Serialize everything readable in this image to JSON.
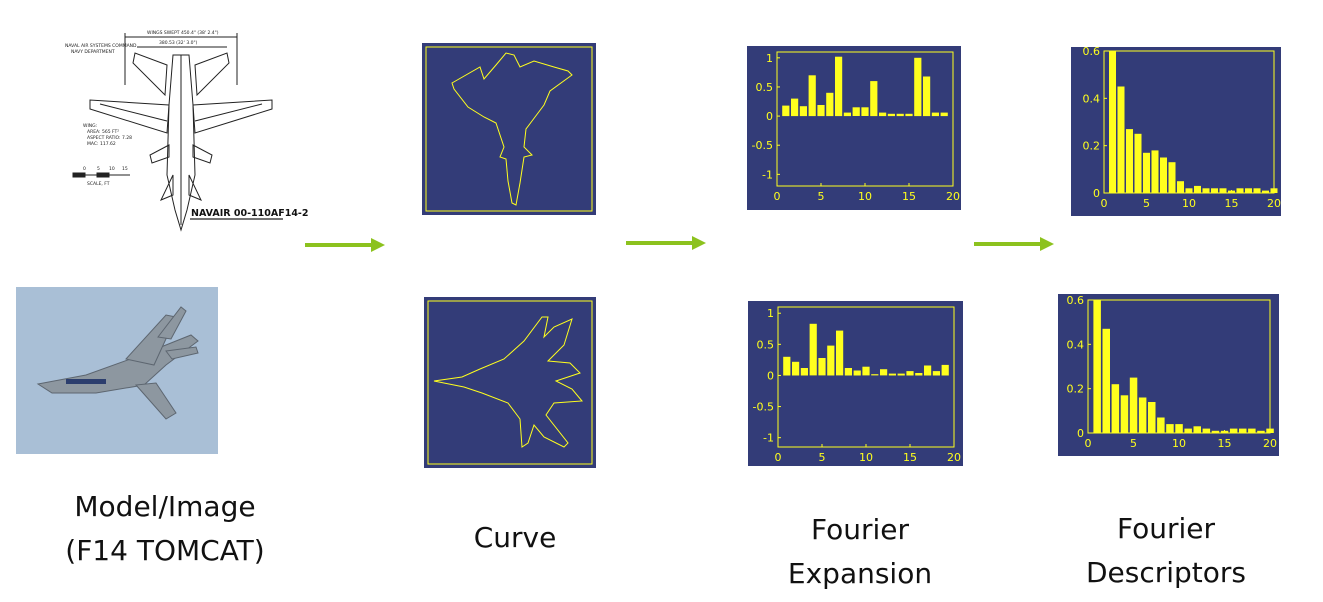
{
  "drawing": {
    "header_lines": [
      "NAVAL AIR SYSTEMS COMMAND",
      "NAVY DEPARTMENT"
    ],
    "wingspan_top": "WINGS SWEPT 450.4\" (38' 2.4\")",
    "wingspan_mid": "380.53 (32' 3.0\")",
    "wing_notes": [
      "WING:",
      "AREA: 565 FT²",
      "ASPECT RATIO: 7.28",
      "MAC: 117.62"
    ],
    "scale_ticks": [
      "0",
      "5",
      "10",
      "15"
    ],
    "scale_label": "SCALE, FT",
    "doc_number": "NAVAIR 00-110AF14-2"
  },
  "captions": {
    "model": [
      "Model/Image",
      "(F14 TOMCAT)"
    ],
    "curve": "Curve",
    "expansion": [
      "Fourier",
      "Expansion"
    ],
    "descriptors": [
      "Fourier",
      "Descriptors"
    ]
  },
  "colors": {
    "panel_bg": "#333c78",
    "bars": "#ffff1e",
    "arrow": "#8cc21e",
    "photo_sky": "#a9bfd6"
  },
  "chart_data": [
    {
      "id": "expansion-top",
      "type": "bar",
      "x": [
        1,
        2,
        3,
        4,
        5,
        6,
        7,
        8,
        9,
        10,
        11,
        12,
        13,
        14,
        15,
        16,
        17,
        18,
        19
      ],
      "values": [
        0.18,
        0.3,
        0.17,
        0.7,
        0.19,
        0.4,
        1.02,
        0.06,
        0.15,
        0.15,
        0.6,
        0.06,
        0.04,
        0.04,
        0.04,
        1.0,
        0.68,
        0.06,
        0.06
      ],
      "xlim": [
        0,
        20
      ],
      "ylim": [
        -1.2,
        1.1
      ],
      "xticks": [
        "0",
        "5",
        "10",
        "15",
        "20"
      ],
      "yticks": [
        "1",
        "0.5",
        "0",
        "-0.5",
        "-1"
      ],
      "ytick_values": [
        1,
        0.5,
        0,
        -0.5,
        -1
      ],
      "xtick_values": [
        0,
        5,
        10,
        15,
        20
      ]
    },
    {
      "id": "expansion-bottom",
      "type": "bar",
      "x": [
        1,
        2,
        3,
        4,
        5,
        6,
        7,
        8,
        9,
        10,
        11,
        12,
        13,
        14,
        15,
        16,
        17,
        18,
        19
      ],
      "values": [
        0.3,
        0.22,
        0.12,
        0.83,
        0.28,
        0.48,
        0.72,
        0.12,
        0.08,
        0.14,
        0.02,
        0.1,
        0.03,
        0.03,
        0.07,
        0.04,
        0.16,
        0.07,
        0.17
      ],
      "xlim": [
        0,
        20
      ],
      "ylim": [
        -1.15,
        1.1
      ],
      "xticks": [
        "0",
        "5",
        "10",
        "15",
        "20"
      ],
      "yticks": [
        "1",
        "0.5",
        "0",
        "-0.5",
        "-1"
      ],
      "ytick_values": [
        1,
        0.5,
        0,
        -0.5,
        -1
      ],
      "xtick_values": [
        0,
        5,
        10,
        15,
        20
      ]
    },
    {
      "id": "descriptors-top",
      "type": "bar",
      "x": [
        1,
        2,
        3,
        4,
        5,
        6,
        7,
        8,
        9,
        10,
        11,
        12,
        13,
        14,
        15,
        16,
        17,
        18,
        19,
        20
      ],
      "values": [
        0.6,
        0.45,
        0.27,
        0.25,
        0.17,
        0.18,
        0.15,
        0.13,
        0.05,
        0.02,
        0.03,
        0.02,
        0.02,
        0.02,
        0.01,
        0.02,
        0.02,
        0.02,
        0.01,
        0.02
      ],
      "xlim": [
        0,
        20
      ],
      "ylim": [
        0,
        0.6
      ],
      "xticks": [
        "0",
        "5",
        "10",
        "15",
        "20"
      ],
      "yticks": [
        "0.6",
        "0.4",
        "0.2",
        "0"
      ],
      "ytick_values": [
        0.6,
        0.4,
        0.2,
        0
      ],
      "xtick_values": [
        0,
        5,
        10,
        15,
        20
      ]
    },
    {
      "id": "descriptors-bottom",
      "type": "bar",
      "x": [
        1,
        2,
        3,
        4,
        5,
        6,
        7,
        8,
        9,
        10,
        11,
        12,
        13,
        14,
        15,
        16,
        17,
        18,
        19,
        20
      ],
      "values": [
        0.6,
        0.47,
        0.22,
        0.17,
        0.25,
        0.16,
        0.14,
        0.07,
        0.04,
        0.04,
        0.02,
        0.03,
        0.02,
        0.01,
        0.01,
        0.02,
        0.02,
        0.02,
        0.01,
        0.02
      ],
      "xlim": [
        0,
        20
      ],
      "ylim": [
        0,
        0.6
      ],
      "xticks": [
        "0",
        "5",
        "10",
        "15",
        "20"
      ],
      "yticks": [
        "0.6",
        "0.4",
        "0.2",
        "0"
      ],
      "ytick_values": [
        0.6,
        0.4,
        0.2,
        0
      ],
      "xtick_values": [
        0,
        5,
        10,
        15,
        20
      ]
    }
  ]
}
